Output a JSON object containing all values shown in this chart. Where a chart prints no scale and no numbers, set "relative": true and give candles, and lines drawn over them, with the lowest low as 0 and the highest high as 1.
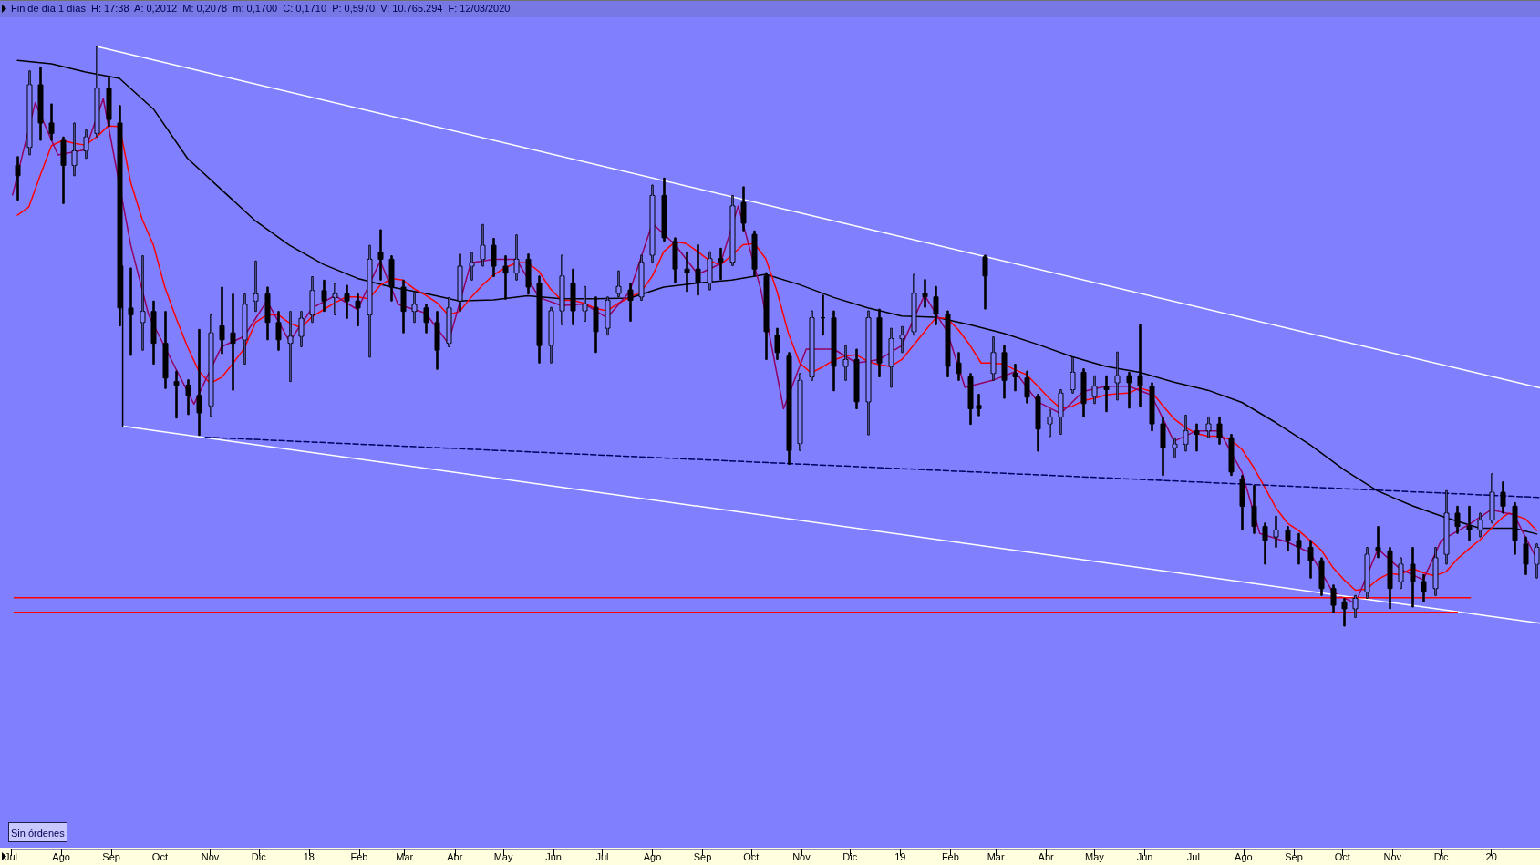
{
  "chart_data": {
    "type": "candlestick",
    "relative": true,
    "title": "Fin de día 1 días",
    "subtitle": "H: 17:38  A: 0,2012  M: 0,2078  m: 0,1700  C: 0,1710  P: 0,5970  V: 10.765.294  F: 12/03/2020",
    "annotations": [
      "Sin órdenes"
    ],
    "xlim": [
      "2017-07-01",
      "2020-01-31"
    ],
    "xticks": [
      {
        "value": "2017-07-01",
        "label": "Jul"
      },
      {
        "value": "2017-08-01",
        "label": "Ago"
      },
      {
        "value": "2017-09-01",
        "label": "Sep"
      },
      {
        "value": "2017-10-01",
        "label": "Oct"
      },
      {
        "value": "2017-11-01",
        "label": "Nov"
      },
      {
        "value": "2017-12-01",
        "label": "Dic"
      },
      {
        "value": "2018-01-01",
        "label": "18"
      },
      {
        "value": "2018-02-01",
        "label": "Feb"
      },
      {
        "value": "2018-03-01",
        "label": "Mar"
      },
      {
        "value": "2018-04-01",
        "label": "Abr"
      },
      {
        "value": "2018-05-01",
        "label": "May"
      },
      {
        "value": "2018-06-01",
        "label": "Jun"
      },
      {
        "value": "2018-07-01",
        "label": "Jul"
      },
      {
        "value": "2018-08-01",
        "label": "Ago"
      },
      {
        "value": "2018-09-01",
        "label": "Sep"
      },
      {
        "value": "2018-10-01",
        "label": "Oct"
      },
      {
        "value": "2018-11-01",
        "label": "Nov"
      },
      {
        "value": "2018-12-01",
        "label": "Dic"
      },
      {
        "value": "2019-01-01",
        "label": "19"
      },
      {
        "value": "2019-02-01",
        "label": "Feb"
      },
      {
        "value": "2019-03-01",
        "label": "Mar"
      },
      {
        "value": "2019-04-01",
        "label": "Abr"
      },
      {
        "value": "2019-05-01",
        "label": "May"
      },
      {
        "value": "2019-06-01",
        "label": "Jun"
      },
      {
        "value": "2019-07-01",
        "label": "Jul"
      },
      {
        "value": "2019-08-01",
        "label": "Ago"
      },
      {
        "value": "2019-09-01",
        "label": "Sep"
      },
      {
        "value": "2019-10-01",
        "label": "Oct"
      },
      {
        "value": "2019-11-01",
        "label": "Nov"
      },
      {
        "value": "2019-12-01",
        "label": "Dic"
      },
      {
        "value": "2020-01-01",
        "label": "20"
      }
    ],
    "tick_labels": "x",
    "series": [
      {
        "type": "line",
        "color": "#000000",
        "x": [
          "2017-07-05",
          "2017-07-26",
          "2017-08-16",
          "2017-09-06",
          "2017-09-27",
          "2017-10-18",
          "2017-11-08",
          "2017-11-29",
          "2017-12-20",
          "2018-01-10",
          "2018-01-31",
          "2018-02-21",
          "2018-03-14",
          "2018-04-04",
          "2018-04-25",
          "2018-05-16",
          "2018-06-06",
          "2018-06-27",
          "2018-07-18",
          "2018-08-08",
          "2018-08-29",
          "2018-09-19",
          "2018-10-10",
          "2018-10-31",
          "2018-11-21",
          "2018-12-12",
          "2019-01-02",
          "2019-01-23",
          "2019-02-13",
          "2019-03-06",
          "2019-03-27",
          "2019-04-17",
          "2019-05-08",
          "2019-05-29",
          "2019-06-19",
          "2019-07-10",
          "2019-07-31",
          "2019-08-21",
          "2019-09-11",
          "2019-10-02",
          "2019-10-23",
          "2019-11-13",
          "2019-12-04",
          "2019-12-25",
          "2020-01-15",
          "2020-01-29"
        ],
        "values": [
          0.976,
          0.97,
          0.956,
          0.945,
          0.892,
          0.807,
          0.753,
          0.699,
          0.657,
          0.624,
          0.6,
          0.585,
          0.574,
          0.561,
          0.563,
          0.57,
          0.565,
          0.565,
          0.566,
          0.585,
          0.592,
          0.597,
          0.607,
          0.589,
          0.567,
          0.549,
          0.535,
          0.533,
          0.52,
          0.505,
          0.486,
          0.465,
          0.448,
          0.438,
          0.421,
          0.407,
          0.386,
          0.351,
          0.313,
          0.27,
          0.233,
          0.208,
          0.187,
          0.169,
          0.169,
          0.159
        ]
      },
      {
        "type": "line",
        "color": "#ff0000",
        "x": [
          "2017-07-05",
          "2017-07-12",
          "2017-07-19",
          "2017-07-26",
          "2017-08-02",
          "2017-08-09",
          "2017-08-16",
          "2017-08-23",
          "2017-08-30",
          "2017-09-06",
          "2017-09-13",
          "2017-09-20",
          "2017-09-27",
          "2017-10-04",
          "2017-10-11",
          "2017-10-18",
          "2017-10-25",
          "2017-11-01",
          "2017-11-08",
          "2017-11-15",
          "2017-11-22",
          "2017-11-29",
          "2017-12-06",
          "2017-12-13",
          "2017-12-20",
          "2017-12-27",
          "2018-01-03",
          "2018-01-10",
          "2018-01-17",
          "2018-01-24",
          "2018-01-31",
          "2018-02-07",
          "2018-02-14",
          "2018-02-21",
          "2018-02-28",
          "2018-03-07",
          "2018-03-14",
          "2018-03-21",
          "2018-03-28",
          "2018-04-04",
          "2018-04-11",
          "2018-04-18",
          "2018-04-25",
          "2018-05-02",
          "2018-05-09",
          "2018-05-16",
          "2018-05-23",
          "2018-05-30",
          "2018-06-06",
          "2018-06-13",
          "2018-06-20",
          "2018-06-27",
          "2018-07-04",
          "2018-07-11",
          "2018-07-18",
          "2018-07-25",
          "2018-08-01",
          "2018-08-08",
          "2018-08-15",
          "2018-08-22",
          "2018-08-29",
          "2018-09-05",
          "2018-09-12",
          "2018-09-19",
          "2018-09-26",
          "2018-10-03",
          "2018-10-10",
          "2018-10-17",
          "2018-10-24",
          "2018-10-31",
          "2018-11-07",
          "2018-11-14",
          "2018-11-21",
          "2018-11-28",
          "2018-12-05",
          "2018-12-12",
          "2018-12-19",
          "2018-12-26",
          "2019-01-02",
          "2019-01-09",
          "2019-01-16",
          "2019-01-23",
          "2019-01-30",
          "2019-02-06",
          "2019-02-13",
          "2019-02-20",
          "2019-02-27",
          "2019-03-06",
          "2019-03-13",
          "2019-03-20",
          "2019-03-27",
          "2019-04-03",
          "2019-04-10",
          "2019-04-17",
          "2019-04-24",
          "2019-05-01",
          "2019-05-08",
          "2019-05-15",
          "2019-05-22",
          "2019-05-29",
          "2019-06-05",
          "2019-06-12",
          "2019-06-19",
          "2019-06-26",
          "2019-07-03",
          "2019-07-10",
          "2019-07-17",
          "2019-07-24",
          "2019-07-31",
          "2019-08-07",
          "2019-08-14",
          "2019-08-21",
          "2019-08-28",
          "2019-09-04",
          "2019-09-11",
          "2019-09-18",
          "2019-09-25",
          "2019-10-02",
          "2019-10-09",
          "2019-10-16",
          "2019-10-23",
          "2019-10-30",
          "2019-11-06",
          "2019-11-13",
          "2019-11-20",
          "2019-11-27",
          "2019-12-04",
          "2019-12-11",
          "2019-12-18",
          "2019-12-25",
          "2020-01-01",
          "2020-01-08",
          "2020-01-12",
          "2020-01-22",
          "2020-01-29"
        ],
        "values": [
          0.709,
          0.723,
          0.777,
          0.829,
          0.838,
          0.833,
          0.83,
          0.844,
          0.863,
          0.862,
          0.765,
          0.702,
          0.657,
          0.585,
          0.531,
          0.482,
          0.44,
          0.419,
          0.429,
          0.453,
          0.479,
          0.524,
          0.537,
          0.537,
          0.523,
          0.515,
          0.534,
          0.546,
          0.558,
          0.568,
          0.568,
          0.565,
          0.588,
          0.6,
          0.597,
          0.582,
          0.571,
          0.558,
          0.537,
          0.543,
          0.567,
          0.588,
          0.606,
          0.618,
          0.627,
          0.627,
          0.612,
          0.582,
          0.562,
          0.562,
          0.557,
          0.548,
          0.544,
          0.557,
          0.567,
          0.577,
          0.604,
          0.646,
          0.663,
          0.66,
          0.646,
          0.631,
          0.623,
          0.64,
          0.658,
          0.66,
          0.634,
          0.577,
          0.505,
          0.454,
          0.437,
          0.447,
          0.459,
          0.466,
          0.468,
          0.457,
          0.451,
          0.448,
          0.46,
          0.484,
          0.508,
          0.532,
          0.531,
          0.511,
          0.485,
          0.454,
          0.454,
          0.452,
          0.442,
          0.434,
          0.414,
          0.393,
          0.376,
          0.379,
          0.389,
          0.393,
          0.399,
          0.401,
          0.402,
          0.411,
          0.405,
          0.381,
          0.358,
          0.343,
          0.332,
          0.328,
          0.328,
          0.322,
          0.305,
          0.275,
          0.24,
          0.204,
          0.178,
          0.165,
          0.148,
          0.131,
          0.102,
          0.08,
          0.062,
          0.064,
          0.081,
          0.091,
          0.089,
          0.1,
          0.092,
          0.087,
          0.094,
          0.116,
          0.133,
          0.149,
          0.169,
          0.188,
          0.195,
          0.185,
          0.165
        ]
      },
      {
        "type": "line",
        "color": "#900060",
        "x": [
          "2017-07-02",
          "2017-07-16",
          "2017-07-30",
          "2017-08-16",
          "2017-08-27",
          "2017-09-13",
          "2017-09-24",
          "2017-10-11",
          "2017-10-22",
          "2017-11-08",
          "2017-11-22",
          "2017-12-06",
          "2017-12-20",
          "2018-01-03",
          "2018-01-17",
          "2018-01-31",
          "2018-02-14",
          "2018-02-25",
          "2018-03-14",
          "2018-03-28",
          "2018-04-11",
          "2018-04-25",
          "2018-05-09",
          "2018-05-23",
          "2018-06-06",
          "2018-06-20",
          "2018-07-04",
          "2018-07-18",
          "2018-08-01",
          "2018-08-15",
          "2018-08-29",
          "2018-09-12",
          "2018-09-23",
          "2018-10-07",
          "2018-10-21",
          "2018-11-04",
          "2018-11-21",
          "2018-12-05",
          "2018-12-19",
          "2019-01-02",
          "2019-01-16",
          "2019-01-30",
          "2019-02-10",
          "2019-02-27",
          "2019-03-13",
          "2019-03-27",
          "2019-04-10",
          "2019-04-24",
          "2019-05-08",
          "2019-05-22",
          "2019-06-05",
          "2019-06-19",
          "2019-07-03",
          "2019-07-17",
          "2019-07-31",
          "2019-08-11",
          "2019-08-28",
          "2019-09-11",
          "2019-09-25",
          "2019-10-09",
          "2019-10-23",
          "2019-11-06",
          "2019-11-20",
          "2019-12-01",
          "2019-12-18",
          "2020-01-01",
          "2020-01-15",
          "2020-01-29"
        ],
        "values": [
          0.744,
          0.903,
          0.813,
          0.822,
          0.91,
          0.657,
          0.537,
          0.443,
          0.383,
          0.482,
          0.5,
          0.561,
          0.491,
          0.549,
          0.57,
          0.546,
          0.63,
          0.555,
          0.54,
          0.488,
          0.627,
          0.633,
          0.633,
          0.567,
          0.553,
          0.556,
          0.532,
          0.577,
          0.695,
          0.658,
          0.607,
          0.625,
          0.725,
          0.58,
          0.375,
          0.478,
          0.478,
          0.454,
          0.46,
          0.484,
          0.571,
          0.508,
          0.412,
          0.424,
          0.439,
          0.387,
          0.367,
          0.405,
          0.414,
          0.414,
          0.399,
          0.319,
          0.337,
          0.337,
          0.266,
          0.16,
          0.145,
          0.127,
          0.059,
          0.039,
          0.133,
          0.098,
          0.08,
          0.148,
          0.175,
          0.201,
          0.192,
          0.116
        ]
      },
      {
        "type": "line",
        "color": "#ffffff",
        "x": [
          "2017-08-23",
          "2020-01-31"
        ],
        "values": [
          1.0,
          0.411
        ]
      },
      {
        "type": "line",
        "color": "#ffffff",
        "x": [
          "2017-09-08",
          "2020-01-31"
        ],
        "values": [
          0.345,
          0.005
        ]
      },
      {
        "type": "line",
        "color": "#000000",
        "x": [
          "2017-09-08",
          "2017-09-08"
        ],
        "values": [
          0.621,
          0.345
        ]
      },
      {
        "type": "line",
        "color": "#000060",
        "line_style": "dashed",
        "x": [
          "2017-10-29",
          "2020-01-31"
        ],
        "values": [
          0.326,
          0.222
        ]
      },
      {
        "type": "line",
        "color": "#ff0000",
        "x": [
          "2017-07-03",
          "2019-12-19"
        ],
        "values": [
          0.049,
          0.049
        ]
      },
      {
        "type": "line",
        "color": "#ff0000",
        "x": [
          "2017-07-03",
          "2019-12-11"
        ],
        "values": [
          0.024,
          0.024
        ]
      },
      {
        "type": "candlestick",
        "color": "#000000",
        "x": [
          "2017-07-05",
          "2017-07-12",
          "2017-07-19",
          "2017-07-26",
          "2017-08-02",
          "2017-08-09",
          "2017-08-16",
          "2017-08-23",
          "2017-08-30",
          "2017-09-06",
          "2017-09-13",
          "2017-09-20",
          "2017-09-27",
          "2017-10-04",
          "2017-10-11",
          "2017-10-18",
          "2017-10-25",
          "2017-11-01",
          "2017-11-08",
          "2017-11-15",
          "2017-11-22",
          "2017-11-29",
          "2017-12-06",
          "2017-12-13",
          "2017-12-20",
          "2017-12-27",
          "2018-01-03",
          "2018-01-10",
          "2018-01-17",
          "2018-01-24",
          "2018-01-31",
          "2018-02-07",
          "2018-02-14",
          "2018-02-21",
          "2018-02-28",
          "2018-03-07",
          "2018-03-14",
          "2018-03-21",
          "2018-03-28",
          "2018-04-04",
          "2018-04-11",
          "2018-04-18",
          "2018-04-25",
          "2018-05-02",
          "2018-05-09",
          "2018-05-16",
          "2018-05-23",
          "2018-05-30",
          "2018-06-06",
          "2018-06-13",
          "2018-06-20",
          "2018-06-27",
          "2018-07-04",
          "2018-07-11",
          "2018-07-18",
          "2018-07-25",
          "2018-08-01",
          "2018-08-08",
          "2018-08-15",
          "2018-08-22",
          "2018-08-29",
          "2018-09-05",
          "2018-09-12",
          "2018-09-19",
          "2018-09-26",
          "2018-10-03",
          "2018-10-10",
          "2018-10-17",
          "2018-10-24",
          "2018-10-31",
          "2018-11-07",
          "2018-11-14",
          "2018-11-21",
          "2018-11-28",
          "2018-12-05",
          "2018-12-12",
          "2018-12-19",
          "2018-12-26",
          "2019-01-02",
          "2019-01-09",
          "2019-01-16",
          "2019-01-23",
          "2019-01-30",
          "2019-02-06",
          "2019-02-13",
          "2019-02-18",
          "2019-02-22",
          "2019-02-27",
          "2019-03-06",
          "2019-03-13",
          "2019-03-20",
          "2019-03-27",
          "2019-04-03",
          "2019-04-10",
          "2019-04-17",
          "2019-04-24",
          "2019-05-01",
          "2019-05-08",
          "2019-05-15",
          "2019-05-22",
          "2019-05-29",
          "2019-06-05",
          "2019-06-12",
          "2019-06-19",
          "2019-06-26",
          "2019-07-03",
          "2019-07-10",
          "2019-07-17",
          "2019-07-24",
          "2019-07-31",
          "2019-08-07",
          "2019-08-14",
          "2019-08-21",
          "2019-08-28",
          "2019-09-04",
          "2019-09-11",
          "2019-09-18",
          "2019-09-25",
          "2019-10-02",
          "2019-10-09",
          "2019-10-16",
          "2019-10-23",
          "2019-10-30",
          "2019-11-06",
          "2019-11-13",
          "2019-11-20",
          "2019-11-27",
          "2019-12-04",
          "2019-12-11",
          "2019-12-18",
          "2019-12-25",
          "2020-01-01",
          "2020-01-08",
          "2020-01-15",
          "2020-01-22",
          "2020-01-29"
        ],
        "ohlc": [
          [
            0.795,
            0.81,
            0.735,
            0.777
          ],
          [
            0.826,
            0.958,
            0.813,
            0.934
          ],
          [
            0.934,
            0.964,
            0.838,
            0.868
          ],
          [
            0.868,
            0.901,
            0.838,
            0.85
          ],
          [
            0.838,
            0.844,
            0.729,
            0.795
          ],
          [
            0.795,
            0.868,
            0.777,
            0.82
          ],
          [
            0.82,
            0.856,
            0.807,
            0.844
          ],
          [
            0.85,
            1.0,
            0.844,
            0.928
          ],
          [
            0.928,
            0.949,
            0.862,
            0.874
          ],
          [
            0.868,
            0.898,
            0.518,
            0.549
          ],
          [
            0.549,
            0.618,
            0.467,
            0.537
          ],
          [
            0.524,
            0.639,
            0.476,
            0.543
          ],
          [
            0.543,
            0.561,
            0.452,
            0.488
          ],
          [
            0.488,
            0.543,
            0.41,
            0.428
          ],
          [
            0.422,
            0.44,
            0.359,
            0.416
          ],
          [
            0.416,
            0.425,
            0.365,
            0.398
          ],
          [
            0.398,
            0.512,
            0.329,
            0.368
          ],
          [
            0.38,
            0.537,
            0.362,
            0.506
          ],
          [
            0.518,
            0.585,
            0.47,
            0.494
          ],
          [
            0.506,
            0.573,
            0.407,
            0.488
          ],
          [
            0.494,
            0.573,
            0.452,
            0.555
          ],
          [
            0.561,
            0.63,
            0.543,
            0.573
          ],
          [
            0.573,
            0.585,
            0.494,
            0.524
          ],
          [
            0.524,
            0.543,
            0.476,
            0.494
          ],
          [
            0.488,
            0.543,
            0.422,
            0.5
          ],
          [
            0.5,
            0.543,
            0.482,
            0.531
          ],
          [
            0.537,
            0.603,
            0.524,
            0.579
          ],
          [
            0.579,
            0.597,
            0.543,
            0.561
          ],
          [
            0.567,
            0.591,
            0.537,
            0.573
          ],
          [
            0.573,
            0.588,
            0.531,
            0.561
          ],
          [
            0.561,
            0.573,
            0.518,
            0.549
          ],
          [
            0.537,
            0.657,
            0.464,
            0.633
          ],
          [
            0.645,
            0.684,
            0.597,
            0.633
          ],
          [
            0.633,
            0.639,
            0.561,
            0.585
          ],
          [
            0.585,
            0.597,
            0.506,
            0.543
          ],
          [
            0.543,
            0.576,
            0.524,
            0.555
          ],
          [
            0.549,
            0.555,
            0.506,
            0.524
          ],
          [
            0.524,
            0.543,
            0.443,
            0.476
          ],
          [
            0.488,
            0.567,
            0.482,
            0.549
          ],
          [
            0.561,
            0.642,
            0.543,
            0.621
          ],
          [
            0.621,
            0.645,
            0.597,
            0.627
          ],
          [
            0.633,
            0.693,
            0.621,
            0.657
          ],
          [
            0.657,
            0.669,
            0.603,
            0.621
          ],
          [
            0.621,
            0.639,
            0.564,
            0.609
          ],
          [
            0.609,
            0.675,
            0.597,
            0.633
          ],
          [
            0.633,
            0.642,
            0.573,
            0.585
          ],
          [
            0.592,
            0.604,
            0.454,
            0.484
          ],
          [
            0.484,
            0.55,
            0.454,
            0.544
          ],
          [
            0.544,
            0.64,
            0.52,
            0.604
          ],
          [
            0.592,
            0.616,
            0.52,
            0.544
          ],
          [
            0.544,
            0.586,
            0.526,
            0.556
          ],
          [
            0.55,
            0.568,
            0.472,
            0.508
          ],
          [
            0.514,
            0.568,
            0.502,
            0.562
          ],
          [
            0.574,
            0.613,
            0.568,
            0.586
          ],
          [
            0.58,
            0.592,
            0.526,
            0.562
          ],
          [
            0.568,
            0.64,
            0.562,
            0.628
          ],
          [
            0.64,
            0.761,
            0.628,
            0.743
          ],
          [
            0.743,
            0.773,
            0.664,
            0.67
          ],
          [
            0.664,
            0.67,
            0.592,
            0.616
          ],
          [
            0.616,
            0.646,
            0.577,
            0.61
          ],
          [
            0.616,
            0.658,
            0.571,
            0.592
          ],
          [
            0.592,
            0.646,
            0.58,
            0.634
          ],
          [
            0.634,
            0.652,
            0.598,
            0.628
          ],
          [
            0.628,
            0.743,
            0.622,
            0.725
          ],
          [
            0.731,
            0.758,
            0.682,
            0.695
          ],
          [
            0.676,
            0.682,
            0.604,
            0.616
          ],
          [
            0.604,
            0.61,
            0.46,
            0.508
          ],
          [
            0.502,
            0.514,
            0.46,
            0.472
          ],
          [
            0.466,
            0.472,
            0.279,
            0.303
          ],
          [
            0.315,
            0.436,
            0.303,
            0.424
          ],
          [
            0.43,
            0.544,
            0.424,
            0.532
          ],
          [
            0.532,
            0.571,
            0.502,
            0.532
          ],
          [
            0.532,
            0.544,
            0.406,
            0.448
          ],
          [
            0.448,
            0.484,
            0.424,
            0.46
          ],
          [
            0.46,
            0.478,
            0.375,
            0.387
          ],
          [
            0.387,
            0.544,
            0.33,
            0.532
          ],
          [
            0.532,
            0.547,
            0.43,
            0.454
          ],
          [
            0.448,
            0.514,
            0.412,
            0.496
          ],
          [
            0.496,
            0.517,
            0.472,
            0.502
          ],
          [
            0.508,
            0.607,
            0.502,
            0.574
          ],
          [
            0.574,
            0.598,
            0.55,
            0.568
          ],
          [
            0.568,
            0.586,
            0.52,
            0.538
          ],
          [
            0.538,
            0.544,
            0.43,
            0.448
          ],
          [
            0.454,
            0.472,
            0.424,
            0.436
          ],
          [
            0.43,
            0.436,
            0.348,
            0.375
          ],
          [
            0.381,
            0.4,
            0.363,
            0.375
          ],
          [
            0.637,
            0.64,
            0.547,
            0.604
          ],
          [
            0.436,
            0.499,
            0.424,
            0.472
          ],
          [
            0.472,
            0.484,
            0.393,
            0.424
          ],
          [
            0.436,
            0.452,
            0.406,
            0.43
          ],
          [
            0.428,
            0.44,
            0.385,
            0.395
          ],
          [
            0.395,
            0.4,
            0.302,
            0.34
          ],
          [
            0.349,
            0.373,
            0.327,
            0.361
          ],
          [
            0.361,
            0.408,
            0.331,
            0.402
          ],
          [
            0.408,
            0.464,
            0.402,
            0.438
          ],
          [
            0.438,
            0.444,
            0.361,
            0.384
          ],
          [
            0.396,
            0.432,
            0.384,
            0.414
          ],
          [
            0.414,
            0.432,
            0.37,
            0.408
          ],
          [
            0.42,
            0.473,
            0.39,
            0.432
          ],
          [
            0.432,
            0.438,
            0.376,
            0.42
          ],
          [
            0.432,
            0.52,
            0.379,
            0.414
          ],
          [
            0.414,
            0.42,
            0.337,
            0.349
          ],
          [
            0.349,
            0.361,
            0.26,
            0.308
          ],
          [
            0.308,
            0.325,
            0.29,
            0.314
          ],
          [
            0.314,
            0.364,
            0.302,
            0.337
          ],
          [
            0.337,
            0.349,
            0.302,
            0.331
          ],
          [
            0.337,
            0.361,
            0.325,
            0.349
          ],
          [
            0.349,
            0.361,
            0.314,
            0.325
          ],
          [
            0.325,
            0.331,
            0.26,
            0.266
          ],
          [
            0.254,
            0.26,
            0.166,
            0.207
          ],
          [
            0.207,
            0.243,
            0.16,
            0.172
          ],
          [
            0.172,
            0.178,
            0.107,
            0.148
          ],
          [
            0.154,
            0.19,
            0.136,
            0.166
          ],
          [
            0.166,
            0.172,
            0.13,
            0.148
          ],
          [
            0.148,
            0.16,
            0.107,
            0.136
          ],
          [
            0.136,
            0.148,
            0.083,
            0.113
          ],
          [
            0.113,
            0.118,
            0.053,
            0.065
          ],
          [
            0.065,
            0.071,
            0.024,
            0.036
          ],
          [
            0.042,
            0.048,
            0.0,
            0.03
          ],
          [
            0.03,
            0.053,
            0.015,
            0.048
          ],
          [
            0.059,
            0.136,
            0.048,
            0.124
          ],
          [
            0.136,
            0.172,
            0.118,
            0.13
          ],
          [
            0.13,
            0.136,
            0.03,
            0.065
          ],
          [
            0.077,
            0.118,
            0.065,
            0.107
          ],
          [
            0.107,
            0.136,
            0.033,
            0.077
          ],
          [
            0.077,
            0.089,
            0.042,
            0.059
          ],
          [
            0.065,
            0.136,
            0.053,
            0.118
          ],
          [
            0.124,
            0.234,
            0.107,
            0.195
          ],
          [
            0.195,
            0.207,
            0.16,
            0.172
          ],
          [
            0.172,
            0.207,
            0.148,
            0.166
          ],
          [
            0.166,
            0.195,
            0.154,
            0.183
          ],
          [
            0.183,
            0.263,
            0.178,
            0.231
          ],
          [
            0.231,
            0.249,
            0.195,
            0.207
          ],
          [
            0.207,
            0.213,
            0.124,
            0.148
          ],
          [
            0.142,
            0.154,
            0.089,
            0.107
          ],
          [
            0.107,
            0.142,
            0.083,
            0.136
          ]
        ]
      }
    ]
  }
}
